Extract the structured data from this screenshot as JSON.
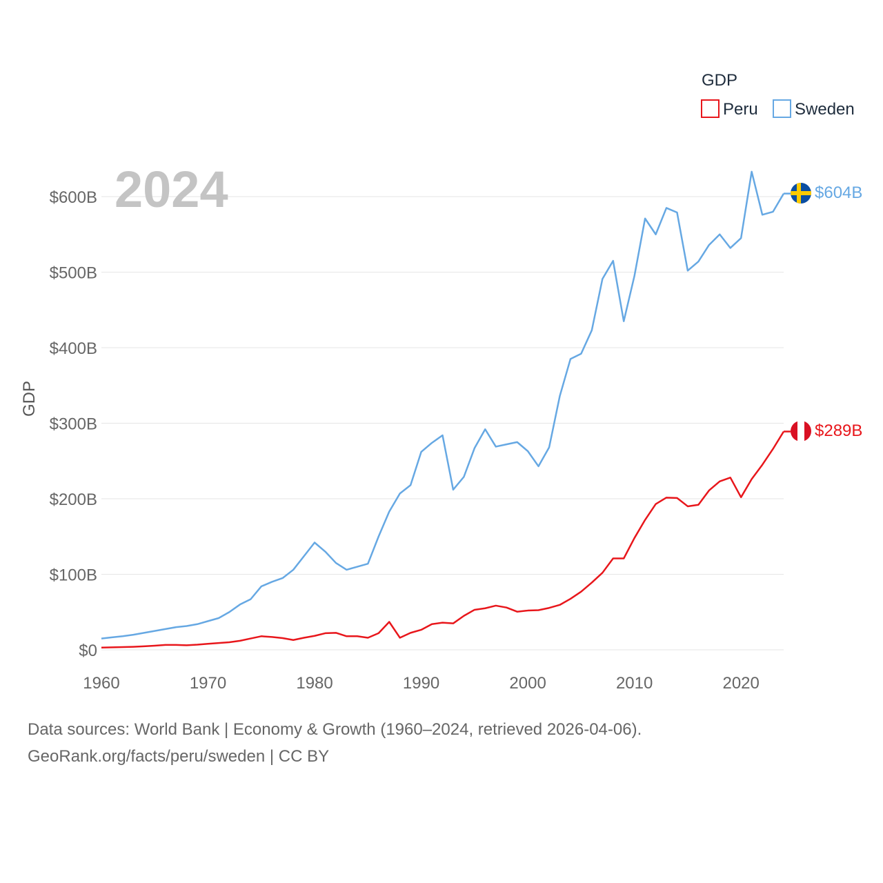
{
  "chart_data": {
    "type": "line",
    "year_label": "2024",
    "ylabel": "GDP",
    "legend_title": "GDP",
    "legend_position": "top-right",
    "xlim": [
      1960,
      2024
    ],
    "ylim": [
      0,
      650
    ],
    "x_ticks": [
      1960,
      1970,
      1980,
      1990,
      2000,
      2010,
      2020
    ],
    "x_tick_labels": [
      "1960",
      "1970",
      "1980",
      "1990",
      "2000",
      "2010",
      "2020"
    ],
    "y_ticks": [
      0,
      100,
      200,
      300,
      400,
      500,
      600
    ],
    "y_tick_labels": [
      "$0",
      "$100B",
      "$200B",
      "$300B",
      "$400B",
      "$500B",
      "$600B"
    ],
    "grid": true,
    "x": [
      1960,
      1961,
      1962,
      1963,
      1964,
      1965,
      1966,
      1967,
      1968,
      1969,
      1970,
      1971,
      1972,
      1973,
      1974,
      1975,
      1976,
      1977,
      1978,
      1979,
      1980,
      1981,
      1982,
      1983,
      1984,
      1985,
      1986,
      1987,
      1988,
      1989,
      1990,
      1991,
      1992,
      1993,
      1994,
      1995,
      1996,
      1997,
      1998,
      1999,
      2000,
      2001,
      2002,
      2003,
      2004,
      2005,
      2006,
      2007,
      2008,
      2009,
      2010,
      2011,
      2012,
      2013,
      2014,
      2015,
      2016,
      2017,
      2018,
      2019,
      2020,
      2021,
      2022,
      2023,
      2024
    ],
    "series": [
      {
        "name": "Sweden",
        "color": "#66a8e3",
        "end_label": "$604B",
        "flag": "sweden-flag",
        "values": [
          15,
          16.5,
          18,
          20,
          22.5,
          25,
          27.5,
          30,
          31.5,
          34,
          38,
          42,
          50,
          60,
          67,
          84,
          90,
          95,
          106,
          124,
          142,
          130,
          115,
          106,
          110,
          114,
          150,
          183,
          207,
          218,
          262,
          274,
          284,
          212,
          229,
          267,
          292,
          269,
          272,
          275,
          263,
          243,
          268,
          336,
          385,
          392,
          423,
          491,
          515,
          435,
          495,
          571,
          550,
          585,
          579,
          502,
          514,
          536,
          550,
          532,
          545,
          633,
          576,
          580,
          604
        ]
      },
      {
        "name": "Peru",
        "color": "#e8161b",
        "end_label": "$289B",
        "flag": "peru-flag",
        "values": [
          3,
          3.3,
          3.6,
          4,
          4.7,
          5.5,
          6.5,
          6.5,
          6,
          6.8,
          8,
          9,
          10,
          12,
          15,
          18,
          17,
          15.5,
          13,
          16,
          18.5,
          22,
          22.5,
          18,
          18,
          16,
          22,
          37,
          16,
          22.5,
          26.5,
          34,
          36,
          35,
          45,
          53,
          55,
          58.5,
          56,
          50.5,
          52,
          52.5,
          55.5,
          59.5,
          67.5,
          77,
          89,
          102,
          121,
          121,
          148,
          172,
          193,
          201.5,
          201,
          190,
          192,
          211,
          223,
          228,
          202,
          226,
          245,
          266,
          289
        ]
      }
    ]
  },
  "footer": {
    "line1": "Data sources: World Bank | Economy & Growth (1960–2024, retrieved 2026-04-06).",
    "line2": "GeoRank.org/facts/peru/sweden | CC BY"
  }
}
